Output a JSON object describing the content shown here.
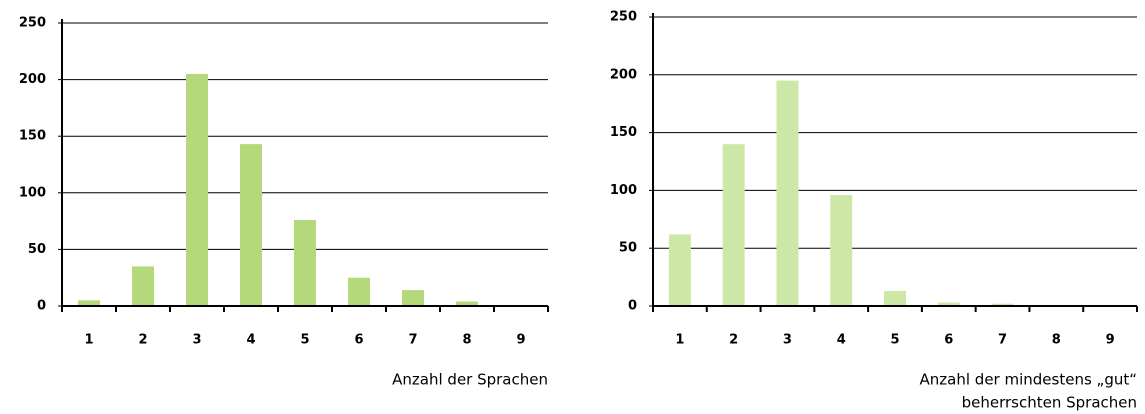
{
  "chart_data": [
    {
      "type": "bar",
      "categories": [
        "1",
        "2",
        "3",
        "4",
        "5",
        "6",
        "7",
        "8",
        "9"
      ],
      "values": [
        5,
        35,
        205,
        143,
        76,
        25,
        14,
        4,
        0
      ],
      "color": "#b3d97a",
      "ylim": [
        0,
        250
      ],
      "yticks": [
        0,
        50,
        100,
        150,
        200,
        250
      ],
      "grid": true,
      "xlabel": [
        "Anzahl der Sprachen"
      ]
    },
    {
      "type": "bar",
      "categories": [
        "1",
        "2",
        "3",
        "4",
        "5",
        "6",
        "7",
        "8",
        "9"
      ],
      "values": [
        62,
        140,
        195,
        96,
        13,
        3,
        2,
        0,
        0
      ],
      "color": "#cde8a6",
      "ylim": [
        0,
        250
      ],
      "yticks": [
        0,
        50,
        100,
        150,
        200,
        250
      ],
      "grid": true,
      "xlabel": [
        "Anzahl der mindestens „gut“",
        "beherrschten Sprachen"
      ]
    }
  ]
}
